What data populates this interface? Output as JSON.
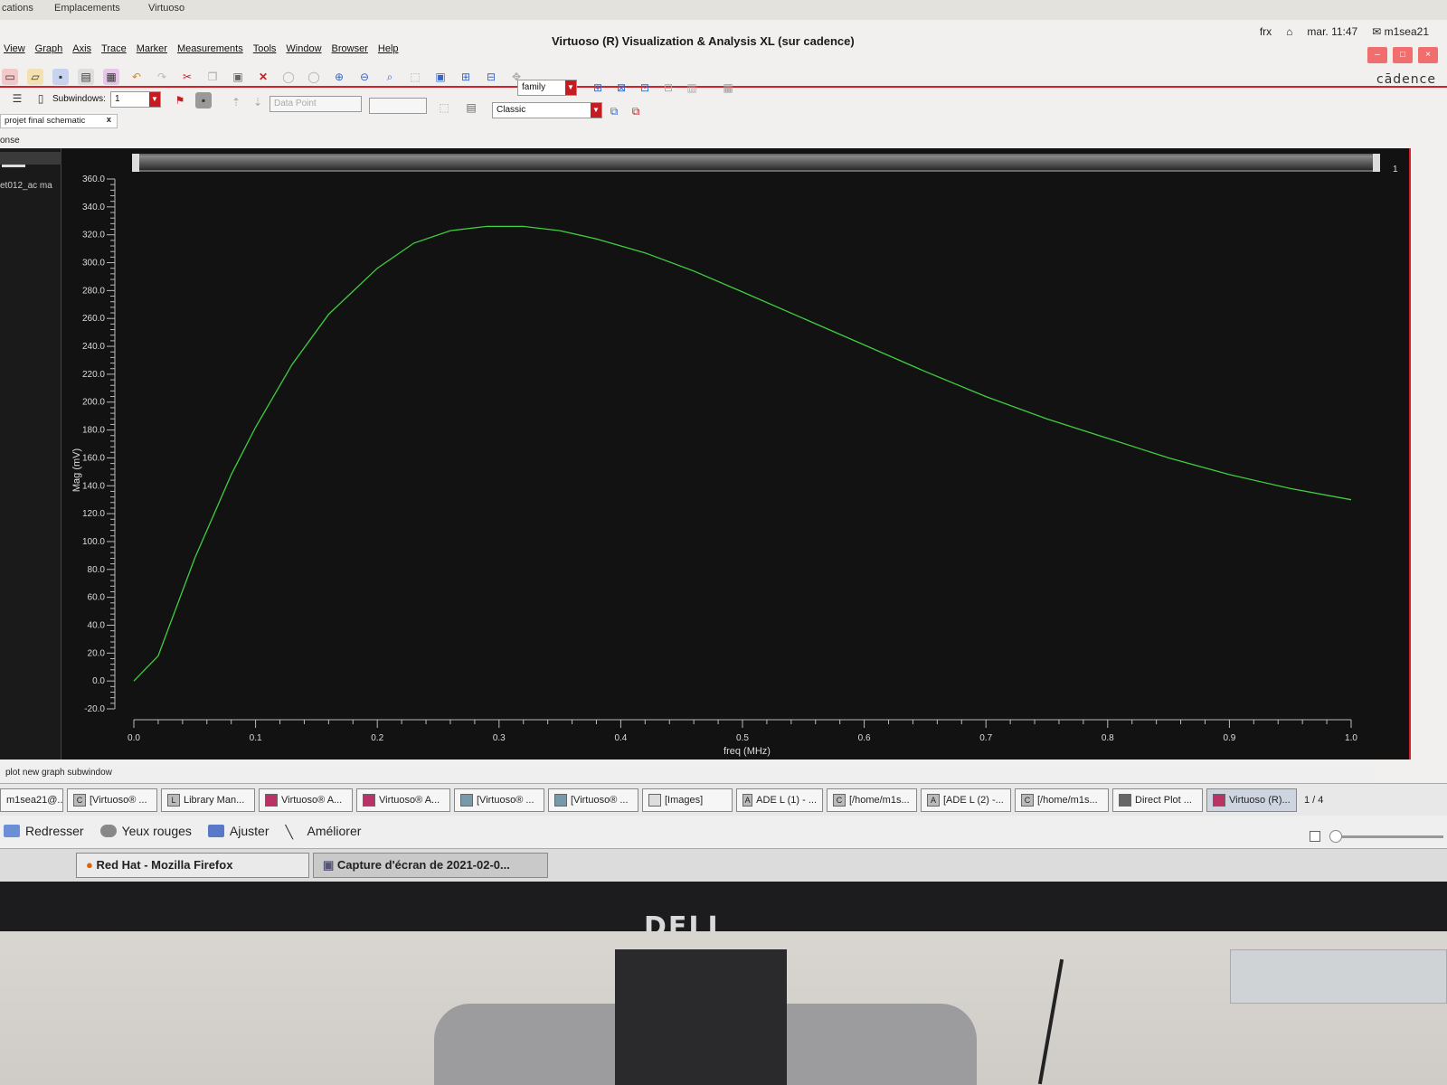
{
  "desktop": {
    "menu_apps": "cations",
    "menu_places": "Emplacements",
    "menu_window": "Virtuoso",
    "lang": "frx",
    "clock": "mar. 11:47",
    "user": "m1sea21"
  },
  "window": {
    "title": "Virtuoso (R) Visualization & Analysis XL (sur cadence)",
    "brand": "cādence"
  },
  "menu": [
    "View",
    "Graph",
    "Axis",
    "Trace",
    "Marker",
    "Measurements",
    "Tools",
    "Window",
    "Browser",
    "Help"
  ],
  "toolbar": {
    "family_combo": "family",
    "subwindows_label": "Subwindows:",
    "subwindows_value": "1",
    "data_point_placeholder": "Data Point",
    "style_combo": "Classic"
  },
  "tab": {
    "label": "projet final schematic",
    "close": "x"
  },
  "panel": {
    "label": "onse",
    "trace_item": "et012_ac ma",
    "subwindow_number": "1"
  },
  "chart_data": {
    "type": "line",
    "xlabel": "freq (MHz)",
    "ylabel": "Mag (mV)",
    "xlim": [
      0.0,
      1.0
    ],
    "ylim": [
      -20.0,
      360.0
    ],
    "x_ticks": [
      "0.0",
      "0.1",
      "0.2",
      "0.3",
      "0.4",
      "0.5",
      "0.6",
      "0.7",
      "0.8",
      "0.9",
      "1.0"
    ],
    "y_ticks": [
      "-20.0",
      "0.0",
      "20.0",
      "40.0",
      "60.0",
      "80.0",
      "100.0",
      "120.0",
      "140.0",
      "160.0",
      "180.0",
      "200.0",
      "220.0",
      "240.0",
      "260.0",
      "280.0",
      "300.0",
      "320.0",
      "340.0",
      "360.0"
    ],
    "series": [
      {
        "color": "#3fcf3f",
        "x": [
          0.0,
          0.02,
          0.05,
          0.08,
          0.1,
          0.13,
          0.16,
          0.2,
          0.23,
          0.26,
          0.29,
          0.32,
          0.35,
          0.38,
          0.42,
          0.46,
          0.5,
          0.55,
          0.6,
          0.65,
          0.7,
          0.75,
          0.8,
          0.85,
          0.9,
          0.95,
          1.0
        ],
        "y": [
          0.0,
          18.0,
          88.0,
          148.0,
          182.0,
          227.0,
          263.0,
          296.0,
          314.0,
          323.0,
          326.0,
          326.0,
          323.0,
          317.0,
          307.0,
          294.0,
          279.0,
          260.0,
          241.0,
          222.0,
          204.0,
          188.0,
          174.0,
          160.0,
          148.0,
          138.0,
          130.0
        ]
      }
    ]
  },
  "status": {
    "message": "plot new graph subwindow"
  },
  "taskbar": {
    "items": [
      "m1sea21@...",
      "[Virtuoso® ...",
      "Library Man...",
      "Virtuoso® A...",
      "Virtuoso® A...",
      "[Virtuoso® ...",
      "[Virtuoso® ...",
      "[Images]",
      "ADE L (1) - ...",
      "[/home/m1s...",
      "[ADE L (2) -...",
      "[/home/m1s...",
      "Direct Plot ...",
      "Virtuoso (R)..."
    ],
    "page": "1 / 4"
  },
  "image_viewer": {
    "buttons": [
      "Redresser",
      "Yeux rouges",
      "Ajuster",
      "Améliorer"
    ]
  },
  "bottom_tasks": [
    "Red Hat - Mozilla Firefox",
    "Capture d'écran de 2021-02-0..."
  ],
  "monitor": {
    "logo": "DELL"
  }
}
